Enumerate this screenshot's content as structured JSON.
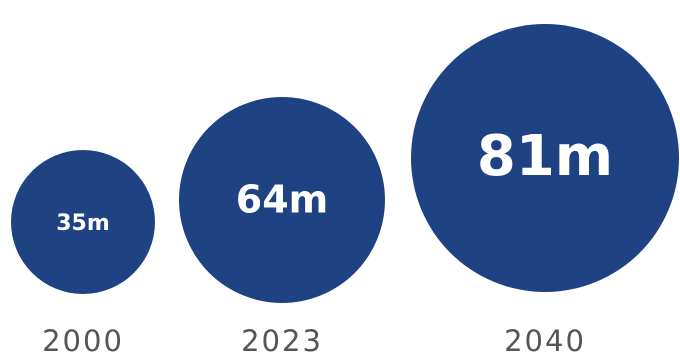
{
  "chart_data": {
    "type": "bubble",
    "categories": [
      "2000",
      "2023",
      "2040"
    ],
    "values": [
      35,
      64,
      81
    ],
    "value_labels": [
      "35m",
      "64m",
      "81m"
    ],
    "unit": "m",
    "colors": {
      "bubble": "#1e4282",
      "bubble_text": "#ffffff",
      "year_text": "#555555"
    }
  }
}
